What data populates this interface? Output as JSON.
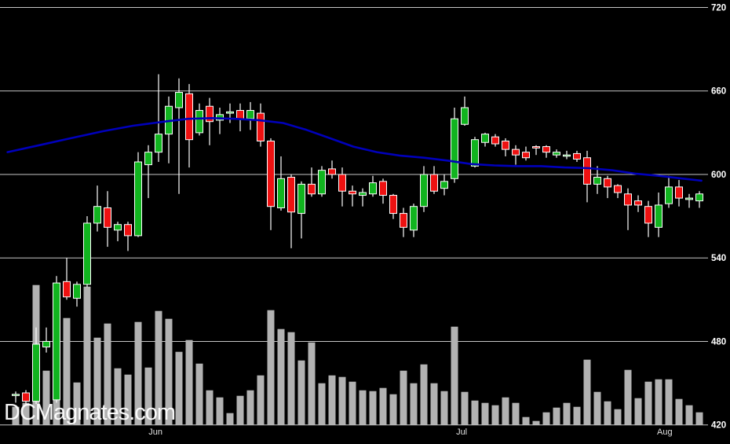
{
  "watermark": "DCMagnates.com",
  "colors": {
    "background": "#000000",
    "grid": "#c6c6c6",
    "up_candle": "#11b41f",
    "down_candle": "#ee1111",
    "candle_outline": "#ffffff",
    "wick": "#ffffff",
    "volume_bar": "#b2b2b2",
    "moving_average": "#0000bb",
    "y_axis_label": "#ffffff",
    "x_axis_label": "#e0e0e0",
    "watermark_text": "#ffffff"
  },
  "chart_data": {
    "type": "candlestick",
    "description": "Daily OHLC price chart with unlabeled relative volume bars and a blue moving-average overlay",
    "y_axis": {
      "side": "right",
      "min": 420,
      "max": 720,
      "ticks": [
        720,
        660,
        600,
        540,
        480,
        420
      ]
    },
    "x_axis": {
      "month_labels": [
        {
          "label": "Jun",
          "i": 13.7
        },
        {
          "label": "Jul",
          "i": 43.7
        },
        {
          "label": "Aug",
          "i": 63.6
        }
      ]
    },
    "legend": "none",
    "grid": "horizontal-only",
    "volume_units": "relative (axis unlabeled)",
    "candles": [
      [
        442,
        444,
        436,
        442,
        23
      ],
      [
        443,
        445,
        435,
        437,
        28
      ],
      [
        437,
        490,
        435,
        478,
        178
      ],
      [
        476,
        490,
        472,
        480,
        69
      ],
      [
        438,
        527,
        436,
        522,
        104
      ],
      [
        523,
        540,
        510,
        512,
        136
      ],
      [
        511,
        523,
        505,
        521,
        54
      ],
      [
        521,
        570,
        519,
        565,
        176
      ],
      [
        565,
        592,
        559,
        577,
        111
      ],
      [
        576,
        588,
        548,
        562,
        129
      ],
      [
        560,
        566,
        552,
        564,
        72
      ],
      [
        564,
        566,
        545,
        556,
        64
      ],
      [
        556,
        616,
        555,
        609,
        131
      ],
      [
        607,
        621,
        583,
        616,
        73
      ],
      [
        616,
        672,
        609,
        629,
        145
      ],
      [
        629,
        656,
        608,
        649,
        135
      ],
      [
        648,
        669,
        586,
        659,
        93
      ],
      [
        658,
        665,
        605,
        625,
        108
      ],
      [
        630,
        651,
        628,
        646,
        78
      ],
      [
        649,
        655,
        621,
        638,
        44
      ],
      [
        639,
        648,
        629,
        643,
        35
      ],
      [
        644,
        651,
        637,
        645,
        15
      ],
      [
        646,
        651,
        631,
        640,
        37
      ],
      [
        640,
        652,
        632,
        646,
        44
      ],
      [
        644,
        651,
        620,
        624,
        63
      ],
      [
        624,
        626,
        560,
        577,
        146
      ],
      [
        576,
        613,
        574,
        597,
        122
      ],
      [
        598,
        600,
        547,
        573,
        118
      ],
      [
        572,
        595,
        554,
        593,
        82
      ],
      [
        593,
        605,
        584,
        586,
        105
      ],
      [
        586,
        606,
        584,
        603,
        53
      ],
      [
        604,
        610,
        597,
        600,
        63
      ],
      [
        600,
        605,
        577,
        588,
        61
      ],
      [
        588,
        592,
        577,
        586,
        55
      ],
      [
        585,
        590,
        577,
        587,
        44
      ],
      [
        586,
        599,
        584,
        594,
        43
      ],
      [
        595,
        597,
        579,
        585,
        47
      ],
      [
        585,
        586,
        568,
        572,
        39
      ],
      [
        572,
        576,
        555,
        562,
        69
      ],
      [
        560,
        579,
        555,
        577,
        53
      ],
      [
        577,
        606,
        573,
        600,
        77
      ],
      [
        600,
        606,
        586,
        588,
        53
      ],
      [
        590,
        600,
        585,
        595,
        43
      ],
      [
        597,
        648,
        594,
        640,
        125
      ],
      [
        636,
        656,
        635,
        648,
        42
      ],
      [
        606,
        627,
        605,
        625,
        31
      ],
      [
        623,
        630,
        620,
        629,
        28
      ],
      [
        627,
        629,
        620,
        622,
        25
      ],
      [
        624,
        626,
        613,
        618,
        35
      ],
      [
        618,
        621,
        607,
        614,
        28
      ],
      [
        616,
        620,
        610,
        612,
        10
      ],
      [
        620,
        621,
        614,
        619,
        5
      ],
      [
        620,
        621,
        612,
        616,
        16
      ],
      [
        614,
        618,
        612,
        616,
        22
      ],
      [
        614,
        617,
        611,
        614,
        28
      ],
      [
        615,
        617,
        609,
        611,
        23
      ],
      [
        612,
        617,
        580,
        593,
        83
      ],
      [
        593,
        606,
        586,
        598,
        42
      ],
      [
        597,
        599,
        583,
        591,
        30
      ],
      [
        592,
        593,
        583,
        587,
        20
      ],
      [
        586,
        590,
        560,
        578,
        70
      ],
      [
        581,
        585,
        573,
        578,
        34
      ],
      [
        577,
        581,
        555,
        565,
        55
      ],
      [
        562,
        587,
        555,
        578,
        58
      ],
      [
        579,
        599,
        576,
        591,
        58
      ],
      [
        591,
        596,
        577,
        583,
        33
      ],
      [
        582,
        586,
        576,
        583,
        25
      ],
      [
        581,
        588,
        576,
        586,
        16
      ]
    ],
    "moving_average_points": [
      [
        -0.8,
        616
      ],
      [
        2.3,
        621
      ],
      [
        5.4,
        626
      ],
      [
        8.5,
        631
      ],
      [
        11.5,
        635
      ],
      [
        14.6,
        638
      ],
      [
        16.9,
        640
      ],
      [
        19.2,
        640.5
      ],
      [
        21.5,
        640
      ],
      [
        23.8,
        639
      ],
      [
        26.2,
        637
      ],
      [
        28.5,
        632
      ],
      [
        30.8,
        626
      ],
      [
        33.1,
        620
      ],
      [
        35.4,
        616
      ],
      [
        37.7,
        613.5
      ],
      [
        40,
        612
      ],
      [
        42.3,
        610
      ],
      [
        44.6,
        607.5
      ],
      [
        46.9,
        606.5
      ],
      [
        49.2,
        606
      ],
      [
        51.5,
        606
      ],
      [
        53.8,
        605
      ],
      [
        56.2,
        604.5
      ],
      [
        58.5,
        603
      ],
      [
        60.8,
        600.5
      ],
      [
        63.1,
        599
      ],
      [
        65.4,
        597
      ],
      [
        67.2,
        595.5
      ]
    ]
  }
}
